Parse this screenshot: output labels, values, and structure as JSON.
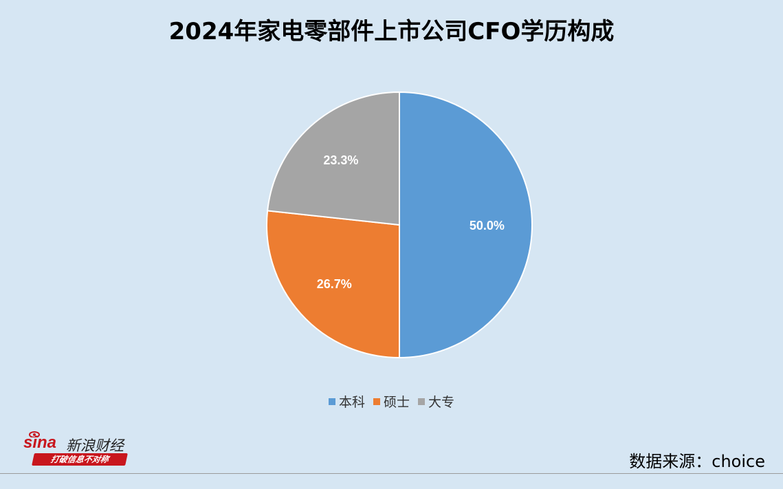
{
  "chart_data": {
    "type": "pie",
    "title": "2024年家电零部件上市公司CFO学历构成",
    "slices": [
      {
        "name": "本科",
        "value": 50.0,
        "label": "50.0%",
        "color": "#5b9bd5"
      },
      {
        "name": "硕士",
        "value": 26.7,
        "label": "26.7%",
        "color": "#ed7d31"
      },
      {
        "name": "大专",
        "value": 23.3,
        "label": "23.3%",
        "color": "#a5a5a5"
      }
    ],
    "legend_position": "bottom"
  },
  "source": "数据来源：choice",
  "logo": {
    "brand": "sina",
    "name": "新浪财经",
    "slogan": "打破信息不对称"
  }
}
